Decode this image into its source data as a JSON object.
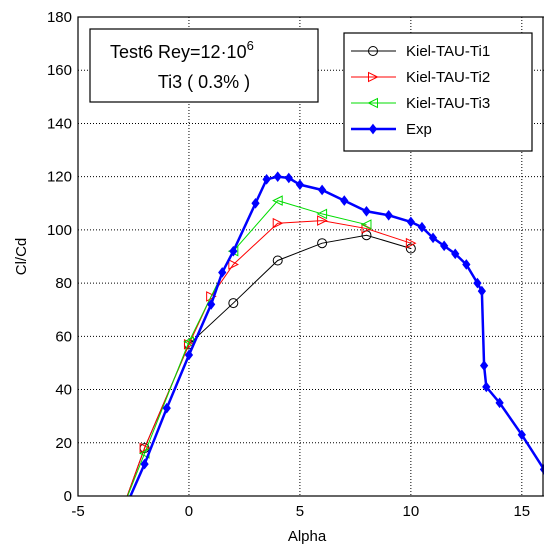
{
  "chart_data": {
    "type": "line",
    "xlabel": "Alpha",
    "ylabel": "Cl/Cd",
    "xlim": [
      -5,
      16
    ],
    "ylim": [
      0,
      180
    ],
    "xticks": [
      -5,
      0,
      5,
      10,
      15
    ],
    "yticks": [
      0,
      20,
      40,
      60,
      80,
      100,
      120,
      140,
      160,
      180
    ],
    "grid": true,
    "legend_position": "top-right",
    "annotation": {
      "line1": "Test6 Rey=12·10",
      "line1_sup": "6",
      "line2": "Ti3 ( 0.3% )"
    },
    "series": [
      {
        "name": "Kiel-TAU-Ti1",
        "color": "#000000",
        "marker": "circle",
        "x": [
          -3,
          -2,
          0,
          2,
          4,
          6,
          8,
          10
        ],
        "y": [
          -5,
          18,
          57,
          72.5,
          88.5,
          95,
          98,
          93
        ]
      },
      {
        "name": "Kiel-TAU-Ti2",
        "color": "#ff0000",
        "marker": "triangle-right",
        "x": [
          -3,
          -2,
          0,
          1,
          2,
          4,
          6,
          8,
          10
        ],
        "y": [
          -5,
          18,
          57,
          75,
          87,
          102.5,
          103.5,
          100.5,
          95
        ]
      },
      {
        "name": "Kiel-TAU-Ti3",
        "color": "#00dd00",
        "marker": "triangle-left",
        "x": [
          -3,
          -2,
          0,
          2,
          4,
          6,
          8
        ],
        "y": [
          -5,
          16,
          58,
          92,
          111,
          106,
          102
        ]
      },
      {
        "name": "Exp",
        "color": "#0000ff",
        "marker": "diamond",
        "x": [
          -2.9,
          -2,
          -1,
          0,
          1,
          1.5,
          2,
          3,
          3.5,
          4,
          4.5,
          5,
          6,
          7,
          8,
          9,
          10,
          10.5,
          11,
          11.5,
          12,
          12.5,
          13,
          13.2,
          13.3,
          13.4,
          14,
          15,
          16
        ],
        "y": [
          -5,
          12,
          33,
          53,
          72,
          84,
          92,
          110,
          119,
          120,
          119.5,
          117,
          115,
          111,
          107,
          105.5,
          103,
          101,
          97,
          94,
          91,
          87,
          80,
          77,
          49,
          41,
          35,
          23,
          10
        ]
      }
    ]
  }
}
